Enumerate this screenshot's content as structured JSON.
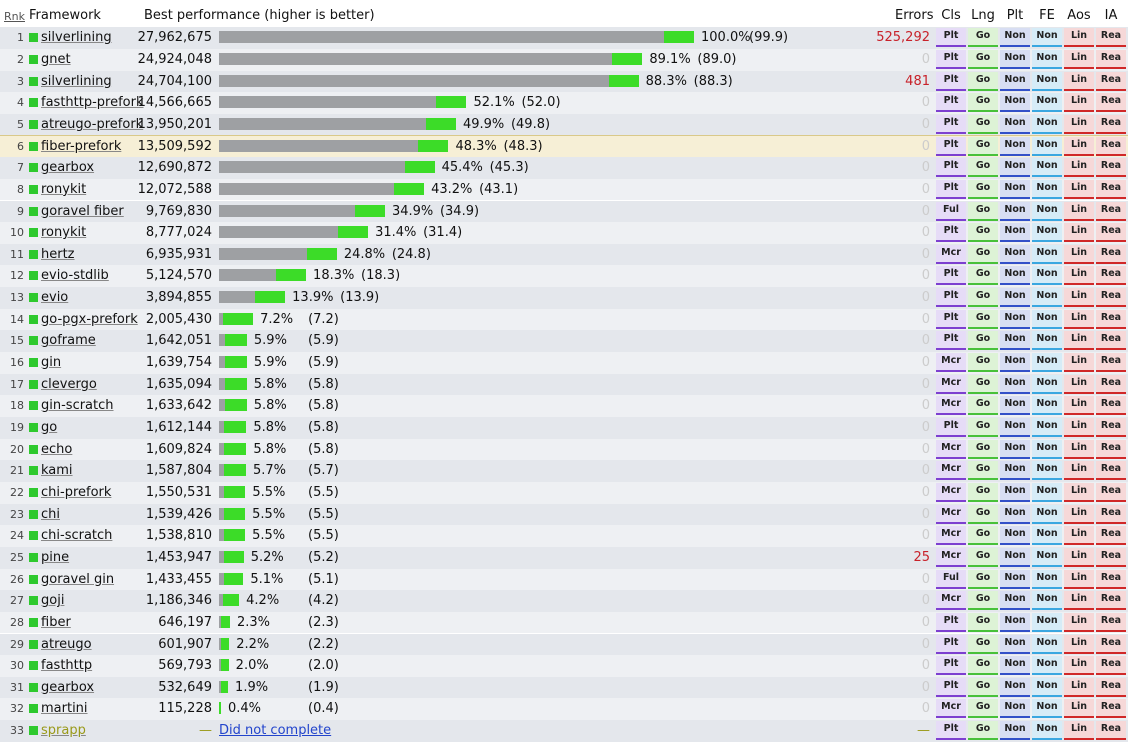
{
  "header": {
    "rank": "Rnk",
    "framework": "Framework",
    "performance": "Best performance (higher is better)",
    "errors": "Errors",
    "tags": [
      "Cls",
      "Lng",
      "Plt",
      "FE",
      "Aos",
      "IA"
    ]
  },
  "tag_colors": {
    "Cls": {
      "bg": "#e6dcf7",
      "border": "#7d3fd0"
    },
    "Lng": {
      "bg": "#ddf3d6",
      "border": "#48c13a"
    },
    "Plt": {
      "bg": "#d8def3",
      "border": "#3350c8"
    },
    "FE": {
      "bg": "#d6ecf7",
      "border": "#3aa7e0"
    },
    "Aos": {
      "bg": "#f6d8d8",
      "border": "#d02828"
    },
    "IA": {
      "bg": "#f6d8d8",
      "border": "#d02828"
    }
  },
  "chart_data": {
    "type": "bar",
    "xlabel": "",
    "ylabel": "",
    "max_value": 27962675,
    "highlighted_rank": 6,
    "rows": [
      {
        "rank": "1",
        "framework": "silverlining",
        "value": "27,962,675",
        "raw": 27962675,
        "pct": "100.0%",
        "pct2": "(99.9)",
        "errors": "525,292",
        "tags": [
          "Plt",
          "Go",
          "Non",
          "Non",
          "Lin",
          "Rea"
        ]
      },
      {
        "rank": "2",
        "framework": "gnet",
        "value": "24,924,048",
        "raw": 24924048,
        "pct": "89.1%",
        "pct2": "(89.0)",
        "errors": "0",
        "tags": [
          "Plt",
          "Go",
          "Non",
          "Non",
          "Lin",
          "Rea"
        ]
      },
      {
        "rank": "3",
        "framework": "silverlining",
        "value": "24,704,100",
        "raw": 24704100,
        "pct": "88.3%",
        "pct2": "(88.3)",
        "errors": "481",
        "tags": [
          "Plt",
          "Go",
          "Non",
          "Non",
          "Lin",
          "Rea"
        ]
      },
      {
        "rank": "4",
        "framework": "fasthttp-prefork",
        "value": "14,566,665",
        "raw": 14566665,
        "pct": "52.1%",
        "pct2": "(52.0)",
        "errors": "0",
        "tags": [
          "Plt",
          "Go",
          "Non",
          "Non",
          "Lin",
          "Rea"
        ]
      },
      {
        "rank": "5",
        "framework": "atreugo-prefork",
        "value": "13,950,201",
        "raw": 13950201,
        "pct": "49.9%",
        "pct2": "(49.8)",
        "errors": "0",
        "tags": [
          "Plt",
          "Go",
          "Non",
          "Non",
          "Lin",
          "Rea"
        ]
      },
      {
        "rank": "6",
        "framework": "fiber-prefork",
        "value": "13,509,592",
        "raw": 13509592,
        "pct": "48.3%",
        "pct2": "(48.3)",
        "errors": "0",
        "tags": [
          "Plt",
          "Go",
          "Non",
          "Non",
          "Lin",
          "Rea"
        ]
      },
      {
        "rank": "7",
        "framework": "gearbox",
        "value": "12,690,872",
        "raw": 12690872,
        "pct": "45.4%",
        "pct2": "(45.3)",
        "errors": "0",
        "tags": [
          "Plt",
          "Go",
          "Non",
          "Non",
          "Lin",
          "Rea"
        ]
      },
      {
        "rank": "8",
        "framework": "ronykit",
        "value": "12,072,588",
        "raw": 12072588,
        "pct": "43.2%",
        "pct2": "(43.1)",
        "errors": "0",
        "tags": [
          "Plt",
          "Go",
          "Non",
          "Non",
          "Lin",
          "Rea"
        ]
      },
      {
        "rank": "9",
        "framework": "goravel fiber",
        "value": "9,769,830",
        "raw": 9769830,
        "pct": "34.9%",
        "pct2": "(34.9)",
        "errors": "0",
        "tags": [
          "Ful",
          "Go",
          "Non",
          "Non",
          "Lin",
          "Rea"
        ]
      },
      {
        "rank": "10",
        "framework": "ronykit",
        "value": "8,777,024",
        "raw": 8777024,
        "pct": "31.4%",
        "pct2": "(31.4)",
        "errors": "0",
        "tags": [
          "Plt",
          "Go",
          "Non",
          "Non",
          "Lin",
          "Rea"
        ]
      },
      {
        "rank": "11",
        "framework": "hertz",
        "value": "6,935,931",
        "raw": 6935931,
        "pct": "24.8%",
        "pct2": "(24.8)",
        "errors": "0",
        "tags": [
          "Mcr",
          "Go",
          "Non",
          "Non",
          "Lin",
          "Rea"
        ]
      },
      {
        "rank": "12",
        "framework": "evio-stdlib",
        "value": "5,124,570",
        "raw": 5124570,
        "pct": "18.3%",
        "pct2": "(18.3)",
        "errors": "0",
        "tags": [
          "Plt",
          "Go",
          "Non",
          "Non",
          "Lin",
          "Rea"
        ]
      },
      {
        "rank": "13",
        "framework": "evio",
        "value": "3,894,855",
        "raw": 3894855,
        "pct": "13.9%",
        "pct2": "(13.9)",
        "errors": "0",
        "tags": [
          "Plt",
          "Go",
          "Non",
          "Non",
          "Lin",
          "Rea"
        ]
      },
      {
        "rank": "14",
        "framework": "go-pgx-prefork",
        "value": "2,005,430",
        "raw": 2005430,
        "pct": "7.2%",
        "pct2": "(7.2)",
        "errors": "0",
        "tags": [
          "Plt",
          "Go",
          "Non",
          "Non",
          "Lin",
          "Rea"
        ]
      },
      {
        "rank": "15",
        "framework": "goframe",
        "value": "1,642,051",
        "raw": 1642051,
        "pct": "5.9%",
        "pct2": "(5.9)",
        "errors": "0",
        "tags": [
          "Plt",
          "Go",
          "Non",
          "Non",
          "Lin",
          "Rea"
        ]
      },
      {
        "rank": "16",
        "framework": "gin",
        "value": "1,639,754",
        "raw": 1639754,
        "pct": "5.9%",
        "pct2": "(5.9)",
        "errors": "0",
        "tags": [
          "Mcr",
          "Go",
          "Non",
          "Non",
          "Lin",
          "Rea"
        ]
      },
      {
        "rank": "17",
        "framework": "clevergo",
        "value": "1,635,094",
        "raw": 1635094,
        "pct": "5.8%",
        "pct2": "(5.8)",
        "errors": "0",
        "tags": [
          "Mcr",
          "Go",
          "Non",
          "Non",
          "Lin",
          "Rea"
        ]
      },
      {
        "rank": "18",
        "framework": "gin-scratch",
        "value": "1,633,642",
        "raw": 1633642,
        "pct": "5.8%",
        "pct2": "(5.8)",
        "errors": "0",
        "tags": [
          "Mcr",
          "Go",
          "Non",
          "Non",
          "Lin",
          "Rea"
        ]
      },
      {
        "rank": "19",
        "framework": "go",
        "value": "1,612,144",
        "raw": 1612144,
        "pct": "5.8%",
        "pct2": "(5.8)",
        "errors": "0",
        "tags": [
          "Plt",
          "Go",
          "Non",
          "Non",
          "Lin",
          "Rea"
        ]
      },
      {
        "rank": "20",
        "framework": "echo",
        "value": "1,609,824",
        "raw": 1609824,
        "pct": "5.8%",
        "pct2": "(5.8)",
        "errors": "0",
        "tags": [
          "Mcr",
          "Go",
          "Non",
          "Non",
          "Lin",
          "Rea"
        ]
      },
      {
        "rank": "21",
        "framework": "kami",
        "value": "1,587,804",
        "raw": 1587804,
        "pct": "5.7%",
        "pct2": "(5.7)",
        "errors": "0",
        "tags": [
          "Mcr",
          "Go",
          "Non",
          "Non",
          "Lin",
          "Rea"
        ]
      },
      {
        "rank": "22",
        "framework": "chi-prefork",
        "value": "1,550,531",
        "raw": 1550531,
        "pct": "5.5%",
        "pct2": "(5.5)",
        "errors": "0",
        "tags": [
          "Mcr",
          "Go",
          "Non",
          "Non",
          "Lin",
          "Rea"
        ]
      },
      {
        "rank": "23",
        "framework": "chi",
        "value": "1,539,426",
        "raw": 1539426,
        "pct": "5.5%",
        "pct2": "(5.5)",
        "errors": "0",
        "tags": [
          "Mcr",
          "Go",
          "Non",
          "Non",
          "Lin",
          "Rea"
        ]
      },
      {
        "rank": "24",
        "framework": "chi-scratch",
        "value": "1,538,810",
        "raw": 1538810,
        "pct": "5.5%",
        "pct2": "(5.5)",
        "errors": "0",
        "tags": [
          "Mcr",
          "Go",
          "Non",
          "Non",
          "Lin",
          "Rea"
        ]
      },
      {
        "rank": "25",
        "framework": "pine",
        "value": "1,453,947",
        "raw": 1453947,
        "pct": "5.2%",
        "pct2": "(5.2)",
        "errors": "25",
        "tags": [
          "Mcr",
          "Go",
          "Non",
          "Non",
          "Lin",
          "Rea"
        ]
      },
      {
        "rank": "26",
        "framework": "goravel gin",
        "value": "1,433,455",
        "raw": 1433455,
        "pct": "5.1%",
        "pct2": "(5.1)",
        "errors": "0",
        "tags": [
          "Ful",
          "Go",
          "Non",
          "Non",
          "Lin",
          "Rea"
        ]
      },
      {
        "rank": "27",
        "framework": "goji",
        "value": "1,186,346",
        "raw": 1186346,
        "pct": "4.2%",
        "pct2": "(4.2)",
        "errors": "0",
        "tags": [
          "Mcr",
          "Go",
          "Non",
          "Non",
          "Lin",
          "Rea"
        ]
      },
      {
        "rank": "28",
        "framework": "fiber",
        "value": "646,197",
        "raw": 646197,
        "pct": "2.3%",
        "pct2": "(2.3)",
        "errors": "0",
        "tags": [
          "Plt",
          "Go",
          "Non",
          "Non",
          "Lin",
          "Rea"
        ]
      },
      {
        "rank": "29",
        "framework": "atreugo",
        "value": "601,907",
        "raw": 601907,
        "pct": "2.2%",
        "pct2": "(2.2)",
        "errors": "0",
        "tags": [
          "Plt",
          "Go",
          "Non",
          "Non",
          "Lin",
          "Rea"
        ]
      },
      {
        "rank": "30",
        "framework": "fasthttp",
        "value": "569,793",
        "raw": 569793,
        "pct": "2.0%",
        "pct2": "(2.0)",
        "errors": "0",
        "tags": [
          "Plt",
          "Go",
          "Non",
          "Non",
          "Lin",
          "Rea"
        ]
      },
      {
        "rank": "31",
        "framework": "gearbox",
        "value": "532,649",
        "raw": 532649,
        "pct": "1.9%",
        "pct2": "(1.9)",
        "errors": "0",
        "tags": [
          "Plt",
          "Go",
          "Non",
          "Non",
          "Lin",
          "Rea"
        ]
      },
      {
        "rank": "32",
        "framework": "martini",
        "value": "115,228",
        "raw": 115228,
        "pct": "0.4%",
        "pct2": "(0.4)",
        "errors": "0",
        "tags": [
          "Mcr",
          "Go",
          "Non",
          "Non",
          "Lin",
          "Rea"
        ]
      },
      {
        "rank": "33",
        "framework": "sprapp",
        "value": "—",
        "raw": 0,
        "pct": "",
        "pct2": "",
        "dnc": "Did not complete",
        "errors": "—",
        "tags": [
          "Plt",
          "Go",
          "Non",
          "Non",
          "Lin",
          "Rea"
        ]
      }
    ]
  }
}
